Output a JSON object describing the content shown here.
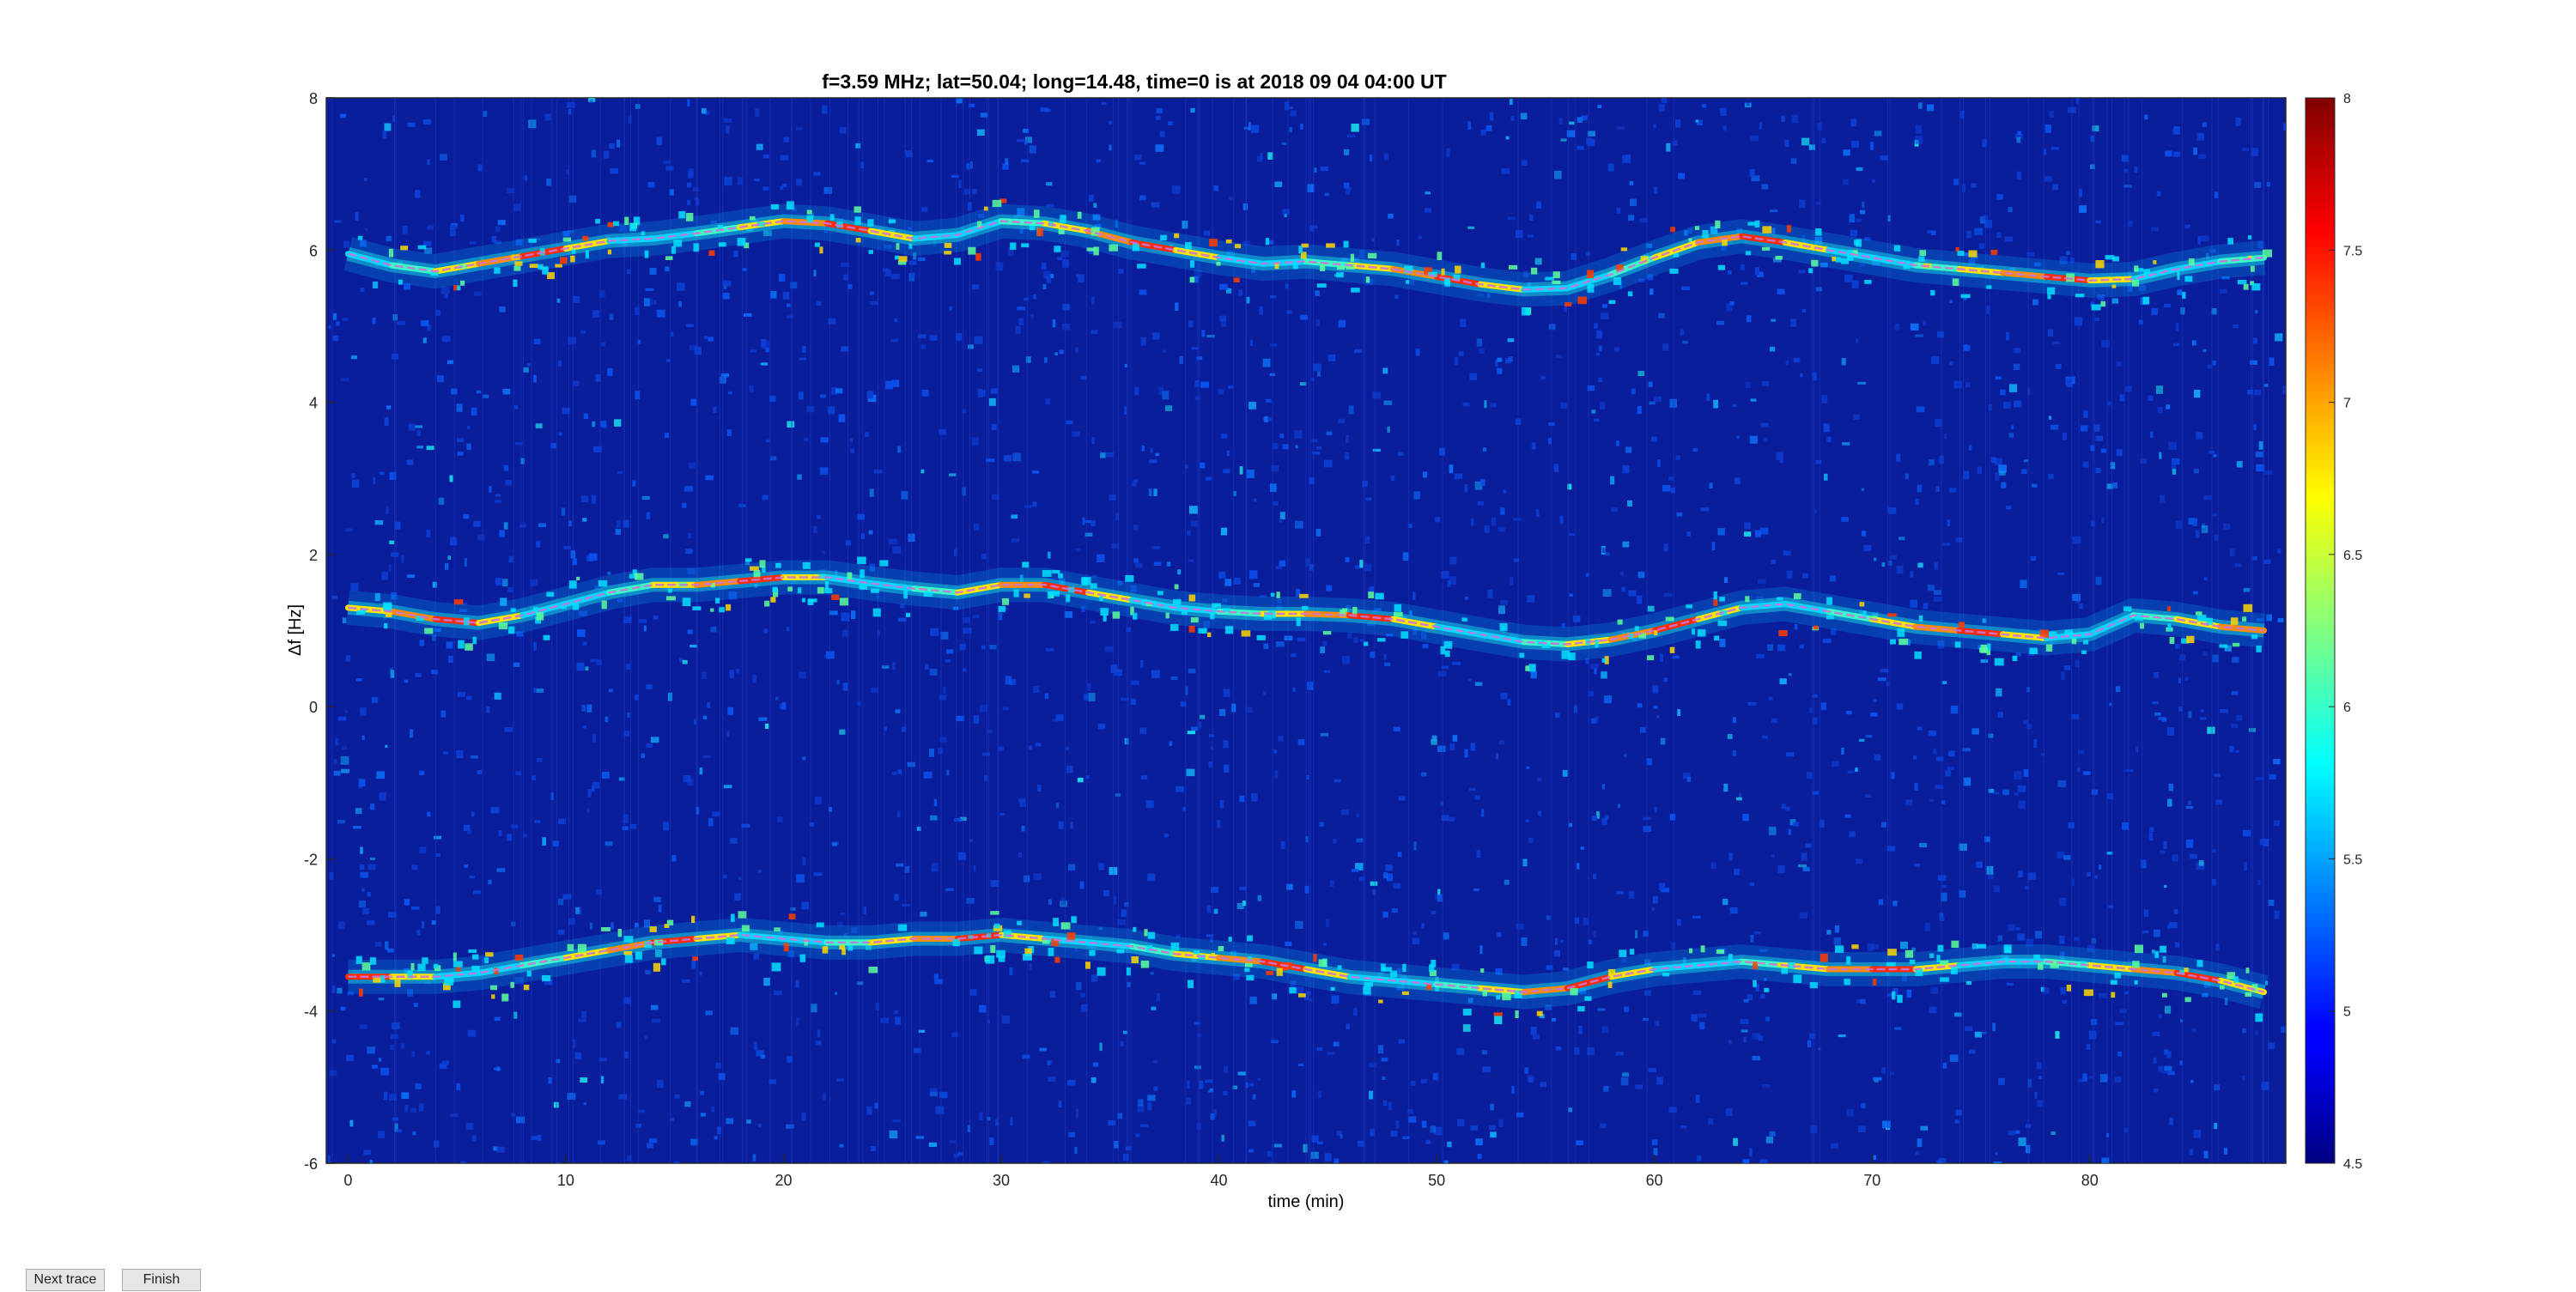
{
  "buttons": {
    "next": "Next trace",
    "finish": "Finish"
  },
  "chart_data": {
    "type": "heatmap",
    "title": "f=3.59 MHz;  lat=50.04; long=14.48, time=0 is at 2018 09 04 04:00 UT",
    "xlabel": "time (min)",
    "ylabel": "Δf [Hz]",
    "xlim": [
      -1,
      89
    ],
    "ylim": [
      -6,
      8
    ],
    "xticks": [
      0,
      10,
      20,
      30,
      40,
      50,
      60,
      70,
      80
    ],
    "yticks": [
      -6,
      -4,
      -2,
      0,
      2,
      4,
      6,
      8
    ],
    "colorbar": {
      "clim": [
        4.5,
        8
      ],
      "ticks": [
        "4.5",
        "5",
        "5.5",
        "6",
        "6.5",
        "7",
        "7.5",
        "8"
      ],
      "colormap": "jet"
    },
    "colors": {
      "background": "#0a1e9c",
      "trace_fit": "#c875d6"
    },
    "traces": [
      {
        "x": [
          0,
          2,
          4,
          6,
          8,
          10,
          12,
          14,
          16,
          18,
          20,
          22,
          24,
          26,
          28,
          30,
          32,
          34,
          36,
          38,
          40,
          42,
          44,
          46,
          48,
          50,
          52,
          54,
          56,
          58,
          60,
          62,
          64,
          66,
          68,
          70,
          72,
          74,
          76,
          78,
          80,
          82,
          84,
          86,
          88
        ],
        "y": [
          5.95,
          5.8,
          5.72,
          5.82,
          5.92,
          6.02,
          6.12,
          6.15,
          6.22,
          6.3,
          6.38,
          6.35,
          6.25,
          6.15,
          6.2,
          6.38,
          6.35,
          6.25,
          6.1,
          6.0,
          5.9,
          5.82,
          5.85,
          5.8,
          5.75,
          5.65,
          5.55,
          5.48,
          5.5,
          5.68,
          5.9,
          6.1,
          6.18,
          6.1,
          6.0,
          5.9,
          5.8,
          5.75,
          5.7,
          5.65,
          5.6,
          5.62,
          5.75,
          5.85,
          5.9
        ]
      },
      {
        "x": [
          0,
          2,
          4,
          6,
          8,
          10,
          12,
          14,
          16,
          18,
          20,
          22,
          24,
          26,
          28,
          30,
          32,
          34,
          36,
          38,
          40,
          42,
          44,
          46,
          48,
          50,
          52,
          54,
          56,
          58,
          60,
          62,
          64,
          66,
          68,
          70,
          72,
          74,
          76,
          78,
          80,
          82,
          84,
          86,
          88
        ],
        "y": [
          1.3,
          1.25,
          1.15,
          1.1,
          1.2,
          1.35,
          1.5,
          1.6,
          1.6,
          1.65,
          1.7,
          1.7,
          1.62,
          1.55,
          1.5,
          1.6,
          1.6,
          1.5,
          1.4,
          1.3,
          1.25,
          1.22,
          1.22,
          1.2,
          1.15,
          1.05,
          0.95,
          0.85,
          0.82,
          0.88,
          1.0,
          1.15,
          1.3,
          1.35,
          1.25,
          1.15,
          1.05,
          1.0,
          0.95,
          0.9,
          0.95,
          1.2,
          1.15,
          1.05,
          1.0
        ]
      },
      {
        "x": [
          0,
          2,
          4,
          6,
          8,
          10,
          12,
          14,
          16,
          18,
          20,
          22,
          24,
          26,
          28,
          30,
          32,
          34,
          36,
          38,
          40,
          42,
          44,
          46,
          48,
          50,
          52,
          54,
          56,
          58,
          60,
          62,
          64,
          66,
          68,
          70,
          72,
          74,
          76,
          78,
          80,
          82,
          84,
          86,
          88
        ],
        "y": [
          -3.55,
          -3.55,
          -3.55,
          -3.5,
          -3.4,
          -3.3,
          -3.2,
          -3.1,
          -3.05,
          -3.0,
          -3.05,
          -3.1,
          -3.1,
          -3.05,
          -3.05,
          -3.0,
          -3.05,
          -3.1,
          -3.15,
          -3.25,
          -3.3,
          -3.35,
          -3.45,
          -3.55,
          -3.6,
          -3.65,
          -3.7,
          -3.75,
          -3.7,
          -3.55,
          -3.45,
          -3.4,
          -3.35,
          -3.4,
          -3.45,
          -3.45,
          -3.45,
          -3.4,
          -3.35,
          -3.35,
          -3.4,
          -3.45,
          -3.5,
          -3.6,
          -3.75
        ]
      }
    ]
  }
}
